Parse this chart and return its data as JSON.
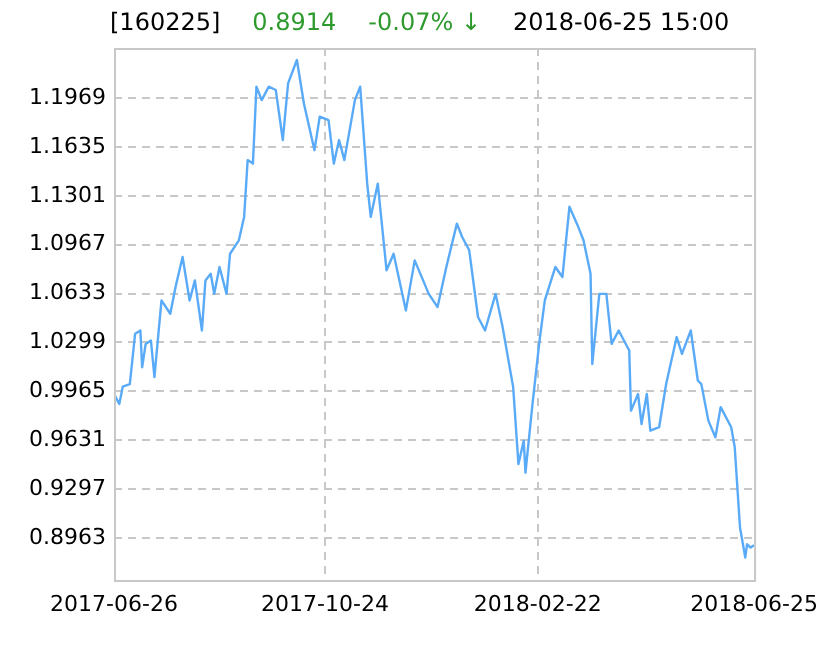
{
  "chart_data": {
    "type": "line",
    "title": "[160225]",
    "annotations": [
      "0.8914",
      "-0.07% ↓",
      "2018-06-25 15:00"
    ],
    "x": [
      "2017-06-26",
      "2017-06-29",
      "2017-07-01",
      "2017-07-05",
      "2017-07-08",
      "2017-07-11",
      "2017-07-12",
      "2017-07-14",
      "2017-07-17",
      "2017-07-19",
      "2017-07-23",
      "2017-07-28",
      "2017-07-31",
      "2017-08-04",
      "2017-08-08",
      "2017-08-11",
      "2017-08-15",
      "2017-08-17",
      "2017-08-20",
      "2017-08-22",
      "2017-08-25",
      "2017-08-29",
      "2017-08-31",
      "2017-09-05",
      "2017-09-08",
      "2017-09-10",
      "2017-09-13",
      "2017-09-15",
      "2017-09-18",
      "2017-09-22",
      "2017-09-26",
      "2017-09-30",
      "2017-10-03",
      "2017-10-08",
      "2017-10-12",
      "2017-10-18",
      "2017-10-21",
      "2017-10-26",
      "2017-10-29",
      "2017-11-01",
      "2017-11-04",
      "2017-11-10",
      "2017-11-13",
      "2017-11-17",
      "2017-11-19",
      "2017-11-23",
      "2017-11-28",
      "2017-12-02",
      "2017-12-09",
      "2017-12-14",
      "2017-12-22",
      "2017-12-27",
      "2018-01-01",
      "2018-01-07",
      "2018-01-10",
      "2018-01-14",
      "2018-01-19",
      "2018-01-23",
      "2018-01-29",
      "2018-02-02",
      "2018-02-08",
      "2018-02-11",
      "2018-02-14",
      "2018-02-15",
      "2018-02-19",
      "2018-02-23",
      "2018-02-26",
      "2018-03-04",
      "2018-03-08",
      "2018-03-12",
      "2018-03-17",
      "2018-03-20",
      "2018-03-24",
      "2018-03-25",
      "2018-03-29",
      "2018-04-02",
      "2018-04-05",
      "2018-04-09",
      "2018-04-15",
      "2018-04-16",
      "2018-04-20",
      "2018-04-22",
      "2018-04-25",
      "2018-04-27",
      "2018-05-02",
      "2018-05-06",
      "2018-05-12",
      "2018-05-15",
      "2018-05-20",
      "2018-05-24",
      "2018-05-26",
      "2018-05-30",
      "2018-06-03",
      "2018-06-06",
      "2018-06-12",
      "2018-06-14",
      "2018-06-17",
      "2018-06-20",
      "2018-06-21",
      "2018-06-23",
      "2018-06-25"
    ],
    "series": [
      {
        "color": "#5aabf7",
        "values": [
          0.9947,
          0.9879,
          0.9998,
          1.0015,
          1.0358,
          1.0381,
          1.013,
          1.0289,
          1.0312,
          1.0062,
          1.0586,
          1.0495,
          1.0678,
          1.0883,
          1.0586,
          1.0723,
          1.0381,
          1.0723,
          1.0768,
          1.0631,
          1.0815,
          1.0631,
          1.0905,
          1.0997,
          1.1157,
          1.1545,
          1.1521,
          1.2047,
          1.1955,
          1.2047,
          1.2024,
          1.1682,
          1.2069,
          1.2229,
          1.1932,
          1.1613,
          1.1842,
          1.1818,
          1.1521,
          1.1682,
          1.1545,
          1.1955,
          1.2047,
          1.1384,
          1.1157,
          1.1384,
          1.0792,
          1.0905,
          1.0518,
          1.086,
          1.0631,
          1.0541,
          1.0815,
          1.1111,
          1.102,
          1.0929,
          1.0473,
          1.0381,
          1.0631,
          1.0404,
          0.9994,
          0.9468,
          0.9628,
          0.9409,
          0.9879,
          1.0313,
          1.0586,
          1.0815,
          1.0746,
          1.1226,
          1.1089,
          1.0997,
          1.0768,
          1.0152,
          1.0631,
          1.0631,
          1.0289,
          1.0381,
          1.0244,
          0.9833,
          0.9947,
          0.9742,
          0.9947,
          0.9696,
          0.972,
          1.0015,
          1.0336,
          1.0221,
          1.0381,
          1.0039,
          1.0015,
          0.9765,
          0.9651,
          0.9857,
          0.972,
          0.9583,
          0.9035,
          0.883,
          0.892,
          0.8898,
          0.8914
        ]
      }
    ],
    "xlim": [
      "2017-06-26",
      "2018-06-25"
    ],
    "xticks": [
      "2017-06-26",
      "2017-10-24",
      "2018-02-22",
      "2018-06-25"
    ],
    "ylim": [
      0.8676,
      1.2311
    ],
    "yticks": [
      0.8963,
      0.9297,
      0.9631,
      0.9965,
      1.0299,
      1.0633,
      1.0967,
      1.1301,
      1.1635,
      1.1969
    ],
    "grid": true,
    "marker": "none",
    "line_style": "solid"
  }
}
